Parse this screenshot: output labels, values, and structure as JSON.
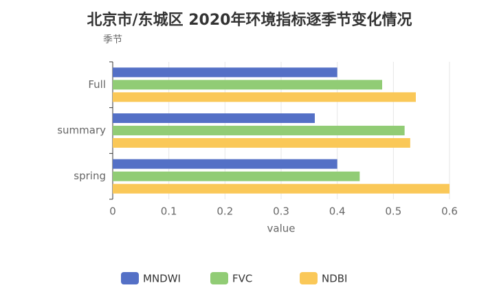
{
  "chart_data": {
    "type": "hbar",
    "title": "北京市/东城区 2020年环境指标逐季节变化情况",
    "y_label": "季节",
    "x_label": "value",
    "categories": [
      "spring",
      "summary",
      "Full"
    ],
    "series": [
      {
        "name": "MNDWI",
        "color": "#5470c6",
        "values": [
          0.4,
          0.36,
          0.4
        ]
      },
      {
        "name": "FVC",
        "color": "#91cc75",
        "values": [
          0.44,
          0.52,
          0.48
        ]
      },
      {
        "name": "NDBI",
        "color": "#fac858",
        "values": [
          0.6,
          0.53,
          0.54
        ]
      }
    ],
    "xlim": [
      0,
      0.6
    ],
    "xticks": [
      0,
      0.1,
      0.2,
      0.3,
      0.4,
      0.5,
      0.6
    ],
    "grid": true
  }
}
